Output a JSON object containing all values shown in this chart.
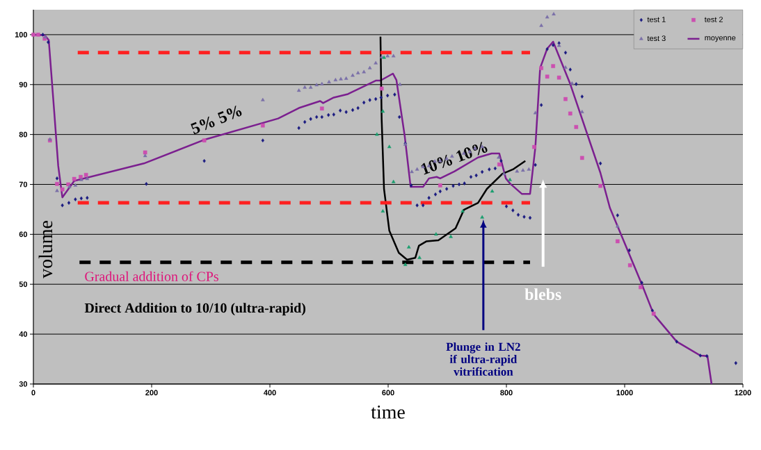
{
  "chart_data": {
    "type": "scatter",
    "xlabel": "time",
    "ylabel": "volume",
    "xlim": [
      0,
      1200
    ],
    "ylim": [
      30,
      105
    ],
    "xticks": [
      0,
      200,
      400,
      600,
      800,
      1000,
      1200
    ],
    "yticks": [
      30,
      40,
      50,
      60,
      70,
      80,
      90,
      100
    ],
    "grid": "y",
    "legend": "top right",
    "series": [
      {
        "name": "test 1",
        "marker": "diamond",
        "color": "#1a1a80",
        "x": [
          16,
          25,
          40,
          49,
          60,
          71,
          81,
          91,
          191,
          289,
          388,
          449,
          459,
          469,
          479,
          488,
          499,
          508,
          519,
          529,
          540,
          549,
          559,
          569,
          579,
          588,
          599,
          611,
          619,
          629,
          639,
          649,
          659,
          669,
          680,
          688,
          699,
          710,
          720,
          729,
          740,
          749,
          759,
          771,
          781,
          791,
          800,
          811,
          820,
          830,
          840,
          849,
          859,
          869,
          879,
          889,
          900,
          908,
          918,
          928,
          959,
          988,
          1008,
          1029,
          1047,
          1088,
          1128,
          1139,
          1188
        ],
        "values": [
          100,
          98.5,
          71.2,
          65.8,
          66.3,
          67.0,
          67.2,
          67.3,
          70.1,
          74.7,
          78.8,
          81.3,
          82.5,
          83.1,
          83.5,
          83.5,
          83.9,
          84.0,
          84.8,
          84.5,
          84.9,
          85.3,
          86.4,
          86.9,
          87.1,
          87.4,
          87.8,
          88.0,
          83.5,
          78.2,
          69.8,
          65.8,
          65.8,
          67.3,
          68.0,
          68.6,
          69.1,
          69.7,
          70.0,
          70.2,
          71.5,
          71.8,
          72.5,
          73.0,
          73.2,
          74.7,
          65.6,
          64.8,
          63.9,
          63.5,
          63.3,
          73.9,
          85.9,
          97.1,
          97.9,
          98.3,
          96.4,
          93.0,
          90.1,
          87.6,
          74.2,
          63.8,
          56.8,
          50.3,
          44.7,
          38.5,
          35.7,
          35.6,
          34.2
        ]
      },
      {
        "name": "test 2",
        "marker": "square",
        "color": "#cc4fb0",
        "x": [
          0,
          8,
          19,
          28,
          40,
          49,
          59,
          69,
          80,
          89,
          189,
          289,
          388,
          488,
          589,
          688,
          788,
          847,
          859,
          869,
          879,
          889,
          900,
          908,
          918,
          928,
          959,
          988,
          1009,
          1027,
          1049
        ],
        "values": [
          100,
          100,
          99.2,
          78.8,
          70.1,
          69.0,
          70.0,
          71.1,
          71.5,
          71.9,
          76.4,
          78.8,
          81.8,
          85.2,
          89.2,
          69.8,
          74.0,
          77.5,
          93.3,
          91.6,
          93.7,
          91.4,
          87.1,
          84.2,
          81.5,
          75.3,
          69.7,
          58.6,
          53.8,
          49.4,
          44.1
        ]
      },
      {
        "name": "test 3",
        "marker": "triangle",
        "color": "#7a6fa8",
        "x": [
          20,
          28,
          40,
          61,
          71,
          81,
          91,
          189,
          388,
          449,
          459,
          469,
          479,
          488,
          500,
          511,
          520,
          529,
          540,
          549,
          559,
          569,
          579,
          589,
          599,
          609,
          620,
          629,
          640,
          649,
          659,
          669,
          679,
          688,
          699,
          708,
          728,
          738,
          747,
          759,
          787,
          796,
          818,
          828,
          838,
          849,
          859,
          869,
          880,
          889,
          900,
          911,
          928,
          988
        ],
        "values": [
          99.5,
          79,
          68.7,
          69.5,
          69.8,
          70.9,
          71.1,
          75.7,
          86.9,
          88.8,
          89.4,
          89.4,
          89.9,
          90.1,
          90.5,
          90.9,
          91.1,
          91.2,
          91.8,
          92.3,
          92.5,
          93.3,
          94.3,
          95.5,
          95.7,
          95.7,
          90.0,
          78.0,
          72.5,
          73.0,
          73.5,
          73.7,
          74.6,
          74.7,
          75.1,
          75.6,
          76.2,
          76.5,
          77.2,
          77.5,
          75.4,
          72.1,
          72.6,
          72.8,
          73.0,
          84.3,
          101.8,
          103.5,
          104.1,
          97.8,
          93.4,
          90.2,
          84.5,
          61.6
        ]
      },
      {
        "name": "moyenne",
        "type": "line",
        "marker": "none",
        "line_style": "solid",
        "color": "#7b1f8f",
        "x": [
          0,
          19,
          26,
          35,
          42,
          49,
          69,
          187,
          288,
          414,
          449,
          485,
          490,
          508,
          532,
          579,
          587,
          608,
          614,
          628,
          638,
          659,
          669,
          682,
          688,
          712,
          752,
          775,
          788,
          799,
          806,
          826,
          840,
          849,
          857,
          869,
          879,
          908,
          959,
          975,
          1029,
          1049,
          1088,
          1128,
          1140,
          1147
        ],
        "values": [
          100,
          99.9,
          98.9,
          84.9,
          73.7,
          67.4,
          70.7,
          74.2,
          78.9,
          83.2,
          85.3,
          86.7,
          86.3,
          87.4,
          88.1,
          90.8,
          90.8,
          92.2,
          90.9,
          79.7,
          69.5,
          69.5,
          71.2,
          71.5,
          71.2,
          72.6,
          75.4,
          76.2,
          76.2,
          71.2,
          70.2,
          68.1,
          68.1,
          77.5,
          93.3,
          97.2,
          98.6,
          90.1,
          72.3,
          65.3,
          50.0,
          44.0,
          38.5,
          35.7,
          35.6,
          30
        ]
      },
      {
        "type": "line",
        "marker": "none",
        "line_style": "solid",
        "color": "#000000",
        "x": [
          587,
          589,
          593,
          602,
          618,
          632,
          646,
          652,
          665,
          685,
          714,
          728,
          752,
          767,
          793,
          811,
          832
        ],
        "values": [
          99.6,
          83.1,
          69.1,
          60.7,
          56.3,
          54.9,
          55.3,
          57.7,
          58.6,
          58.8,
          61.2,
          64.9,
          66.3,
          69.1,
          72.1,
          73.0,
          74.7
        ]
      },
      {
        "marker": "triangle",
        "color": "#1a9e6e",
        "x": [
          581,
          591,
          591,
          593,
          602,
          609,
          629,
          635,
          653,
          681,
          706,
          726,
          759,
          776,
          806
        ],
        "values": [
          80.0,
          84.6,
          64.6,
          95.4,
          77.5,
          70.5,
          53.9,
          57.4,
          55.3,
          60.0,
          59.5,
          64.6,
          63.4,
          68.6,
          70.9
        ]
      },
      {
        "type": "line",
        "marker": "none",
        "line_style": "dashed",
        "color": "#ff2020",
        "x": [
          75,
          840
        ],
        "values": [
          96.4,
          96.4
        ]
      },
      {
        "type": "line",
        "marker": "none",
        "line_style": "dashed",
        "color": "#ff2020",
        "x": [
          75,
          840
        ],
        "values": [
          66.3,
          66.3
        ]
      },
      {
        "type": "line",
        "marker": "none",
        "line_style": "dashed",
        "color": "#000000",
        "x": [
          78,
          840
        ],
        "values": [
          54.4,
          54.4
        ]
      }
    ],
    "annotations": [
      "5% 5%",
      "10% 10%",
      "Gradual addition of CPs",
      "Direct Addition to 10/10 (ultra-rapid)",
      "blebs",
      "Plunge in LN2 if ultra-rapid vitrification"
    ]
  }
}
